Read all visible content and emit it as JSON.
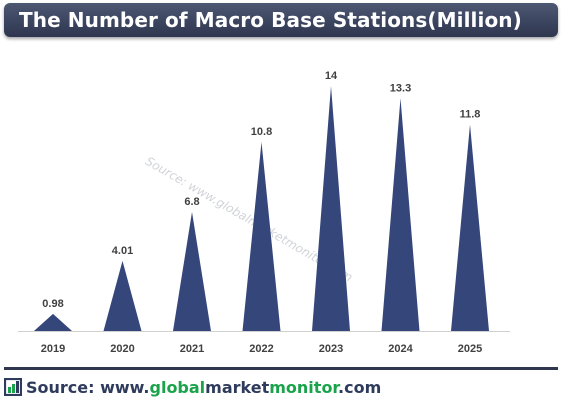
{
  "title": "The Number of Macro Base Stations(Million)",
  "watermark": "Source: www.globalmarketmonitor.com",
  "footer": {
    "label": "Source: www.",
    "brand_part1": "global",
    "brand_part2": "market",
    "brand_part3": "monitor",
    "suffix": ".com"
  },
  "colors": {
    "bar": "#35467a",
    "title_bg": "#3b4560",
    "accent": "#1aa34a",
    "footer_text": "#2f3b5c"
  },
  "chart_data": {
    "type": "bar",
    "bar_shape": "triangle",
    "categories": [
      "2019",
      "2020",
      "2021",
      "2022",
      "2023",
      "2024",
      "2025"
    ],
    "values": [
      0.98,
      4.01,
      6.8,
      10.8,
      14,
      13.3,
      11.8
    ],
    "labels": [
      "0.98",
      "4.01",
      "6.8",
      "10.8",
      "14",
      "13.3",
      "11.8"
    ],
    "title": "The Number of Macro Base Stations(Million)",
    "xlabel": "",
    "ylabel": "",
    "ylim": [
      0,
      14
    ],
    "grid": false,
    "legend": "none"
  }
}
